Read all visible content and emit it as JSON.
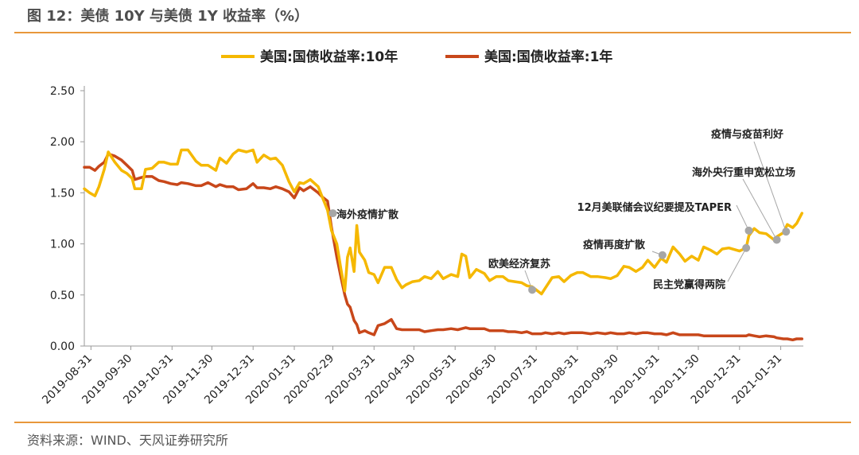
{
  "figure": {
    "title": "图 12：美债 10Y 与美债 1Y 收益率（%）",
    "source": "资料来源：WIND、天风证券研究所"
  },
  "colors": {
    "accent_rule": "#e8973b",
    "series_10y": "#f5b800",
    "series_1y": "#c8471a",
    "marker": "#a6a6a6"
  },
  "chart_data": {
    "type": "line",
    "title": "",
    "xlabel": "",
    "ylabel": "",
    "ylim": [
      0,
      2.5
    ],
    "yticks": [
      "0.00",
      "0.50",
      "1.00",
      "1.50",
      "2.00",
      "2.50"
    ],
    "xlim": [
      "2019-08-26",
      "2021-02-17"
    ],
    "xticks": [
      "2019-08-31",
      "2019-09-30",
      "2019-10-31",
      "2019-11-30",
      "2019-12-31",
      "2020-01-31",
      "2020-02-29",
      "2020-03-31",
      "2020-04-30",
      "2020-05-31",
      "2020-06-30",
      "2020-07-31",
      "2020-08-31",
      "2020-09-30",
      "2020-10-31",
      "2020-11-30",
      "2020-12-31",
      "2021-01-31"
    ],
    "grid": false,
    "legend": "top-center",
    "series": [
      {
        "name": "美国:国债收益率:10年",
        "points": [
          [
            "2019-08-26",
            1.54
          ],
          [
            "2019-08-30",
            1.5
          ],
          [
            "2019-09-03",
            1.47
          ],
          [
            "2019-09-06",
            1.56
          ],
          [
            "2019-09-10",
            1.73
          ],
          [
            "2019-09-13",
            1.9
          ],
          [
            "2019-09-18",
            1.8
          ],
          [
            "2019-09-23",
            1.72
          ],
          [
            "2019-09-27",
            1.69
          ],
          [
            "2019-10-01",
            1.64
          ],
          [
            "2019-10-03",
            1.54
          ],
          [
            "2019-10-08",
            1.54
          ],
          [
            "2019-10-11",
            1.73
          ],
          [
            "2019-10-16",
            1.74
          ],
          [
            "2019-10-21",
            1.8
          ],
          [
            "2019-10-25",
            1.8
          ],
          [
            "2019-10-30",
            1.78
          ],
          [
            "2019-11-04",
            1.78
          ],
          [
            "2019-11-07",
            1.92
          ],
          [
            "2019-11-12",
            1.92
          ],
          [
            "2019-11-18",
            1.81
          ],
          [
            "2019-11-22",
            1.77
          ],
          [
            "2019-11-27",
            1.77
          ],
          [
            "2019-12-03",
            1.72
          ],
          [
            "2019-12-06",
            1.84
          ],
          [
            "2019-12-11",
            1.79
          ],
          [
            "2019-12-16",
            1.88
          ],
          [
            "2019-12-20",
            1.92
          ],
          [
            "2019-12-26",
            1.9
          ],
          [
            "2019-12-31",
            1.92
          ],
          [
            "2020-01-03",
            1.8
          ],
          [
            "2020-01-08",
            1.87
          ],
          [
            "2020-01-13",
            1.83
          ],
          [
            "2020-01-17",
            1.84
          ],
          [
            "2020-01-22",
            1.77
          ],
          [
            "2020-01-27",
            1.61
          ],
          [
            "2020-01-31",
            1.51
          ],
          [
            "2020-02-04",
            1.6
          ],
          [
            "2020-02-07",
            1.59
          ],
          [
            "2020-02-12",
            1.63
          ],
          [
            "2020-02-18",
            1.56
          ],
          [
            "2020-02-21",
            1.46
          ],
          [
            "2020-02-25",
            1.33
          ],
          [
            "2020-02-28",
            1.13
          ],
          [
            "2020-03-03",
            1.0
          ],
          [
            "2020-03-06",
            0.76
          ],
          [
            "2020-03-09",
            0.54
          ],
          [
            "2020-03-11",
            0.87
          ],
          [
            "2020-03-13",
            0.96
          ],
          [
            "2020-03-16",
            0.73
          ],
          [
            "2020-03-18",
            1.18
          ],
          [
            "2020-03-20",
            0.92
          ],
          [
            "2020-03-24",
            0.84
          ],
          [
            "2020-03-27",
            0.72
          ],
          [
            "2020-03-31",
            0.7
          ],
          [
            "2020-04-03",
            0.62
          ],
          [
            "2020-04-08",
            0.77
          ],
          [
            "2020-04-13",
            0.77
          ],
          [
            "2020-04-17",
            0.65
          ],
          [
            "2020-04-21",
            0.57
          ],
          [
            "2020-04-24",
            0.6
          ],
          [
            "2020-04-29",
            0.63
          ],
          [
            "2020-05-04",
            0.64
          ],
          [
            "2020-05-08",
            0.68
          ],
          [
            "2020-05-13",
            0.66
          ],
          [
            "2020-05-18",
            0.73
          ],
          [
            "2020-05-22",
            0.66
          ],
          [
            "2020-05-28",
            0.7
          ],
          [
            "2020-06-02",
            0.68
          ],
          [
            "2020-06-05",
            0.9
          ],
          [
            "2020-06-08",
            0.88
          ],
          [
            "2020-06-11",
            0.67
          ],
          [
            "2020-06-16",
            0.75
          ],
          [
            "2020-06-22",
            0.71
          ],
          [
            "2020-06-26",
            0.64
          ],
          [
            "2020-07-01",
            0.68
          ],
          [
            "2020-07-06",
            0.68
          ],
          [
            "2020-07-10",
            0.64
          ],
          [
            "2020-07-15",
            0.63
          ],
          [
            "2020-07-20",
            0.62
          ],
          [
            "2020-07-24",
            0.59
          ],
          [
            "2020-07-28",
            0.58
          ],
          [
            "2020-08-04",
            0.51
          ],
          [
            "2020-08-07",
            0.57
          ],
          [
            "2020-08-12",
            0.67
          ],
          [
            "2020-08-17",
            0.68
          ],
          [
            "2020-08-21",
            0.63
          ],
          [
            "2020-08-26",
            0.69
          ],
          [
            "2020-08-31",
            0.72
          ],
          [
            "2020-09-04",
            0.72
          ],
          [
            "2020-09-10",
            0.68
          ],
          [
            "2020-09-15",
            0.68
          ],
          [
            "2020-09-21",
            0.67
          ],
          [
            "2020-09-25",
            0.66
          ],
          [
            "2020-09-30",
            0.69
          ],
          [
            "2020-10-05",
            0.78
          ],
          [
            "2020-10-09",
            0.77
          ],
          [
            "2020-10-14",
            0.73
          ],
          [
            "2020-10-19",
            0.77
          ],
          [
            "2020-10-23",
            0.84
          ],
          [
            "2020-10-28",
            0.77
          ],
          [
            "2020-11-02",
            0.86
          ],
          [
            "2020-11-06",
            0.82
          ],
          [
            "2020-11-11",
            0.97
          ],
          [
            "2020-11-16",
            0.9
          ],
          [
            "2020-11-20",
            0.83
          ],
          [
            "2020-11-25",
            0.88
          ],
          [
            "2020-11-30",
            0.84
          ],
          [
            "2020-12-04",
            0.97
          ],
          [
            "2020-12-09",
            0.94
          ],
          [
            "2020-12-14",
            0.9
          ],
          [
            "2020-12-18",
            0.95
          ],
          [
            "2020-12-23",
            0.96
          ],
          [
            "2020-12-31",
            0.93
          ],
          [
            "2021-01-05",
            0.96
          ],
          [
            "2021-01-07",
            1.08
          ],
          [
            "2021-01-11",
            1.15
          ],
          [
            "2021-01-15",
            1.11
          ],
          [
            "2021-01-20",
            1.1
          ],
          [
            "2021-01-26",
            1.04
          ],
          [
            "2021-01-28",
            1.07
          ],
          [
            "2021-02-02",
            1.11
          ],
          [
            "2021-02-05",
            1.19
          ],
          [
            "2021-02-09",
            1.16
          ],
          [
            "2021-02-12",
            1.2
          ],
          [
            "2021-02-16",
            1.3
          ]
        ]
      },
      {
        "name": "美国:国债收益率:1年",
        "points": [
          [
            "2019-08-26",
            1.75
          ],
          [
            "2019-08-30",
            1.75
          ],
          [
            "2019-09-03",
            1.72
          ],
          [
            "2019-09-06",
            1.76
          ],
          [
            "2019-09-10",
            1.8
          ],
          [
            "2019-09-13",
            1.88
          ],
          [
            "2019-09-18",
            1.86
          ],
          [
            "2019-09-23",
            1.82
          ],
          [
            "2019-09-27",
            1.77
          ],
          [
            "2019-10-01",
            1.72
          ],
          [
            "2019-10-03",
            1.63
          ],
          [
            "2019-10-08",
            1.65
          ],
          [
            "2019-10-11",
            1.66
          ],
          [
            "2019-10-16",
            1.66
          ],
          [
            "2019-10-21",
            1.62
          ],
          [
            "2019-10-25",
            1.61
          ],
          [
            "2019-10-30",
            1.59
          ],
          [
            "2019-11-04",
            1.58
          ],
          [
            "2019-11-07",
            1.6
          ],
          [
            "2019-11-12",
            1.59
          ],
          [
            "2019-11-18",
            1.57
          ],
          [
            "2019-11-22",
            1.57
          ],
          [
            "2019-11-27",
            1.6
          ],
          [
            "2019-12-03",
            1.56
          ],
          [
            "2019-12-06",
            1.58
          ],
          [
            "2019-12-11",
            1.56
          ],
          [
            "2019-12-16",
            1.56
          ],
          [
            "2019-12-20",
            1.53
          ],
          [
            "2019-12-26",
            1.54
          ],
          [
            "2019-12-31",
            1.59
          ],
          [
            "2020-01-03",
            1.55
          ],
          [
            "2020-01-08",
            1.55
          ],
          [
            "2020-01-13",
            1.54
          ],
          [
            "2020-01-17",
            1.56
          ],
          [
            "2020-01-22",
            1.54
          ],
          [
            "2020-01-27",
            1.51
          ],
          [
            "2020-01-31",
            1.45
          ],
          [
            "2020-02-04",
            1.55
          ],
          [
            "2020-02-07",
            1.52
          ],
          [
            "2020-02-12",
            1.56
          ],
          [
            "2020-02-18",
            1.5
          ],
          [
            "2020-02-21",
            1.46
          ],
          [
            "2020-02-25",
            1.42
          ],
          [
            "2020-02-28",
            1.16
          ],
          [
            "2020-03-03",
            0.87
          ],
          [
            "2020-03-06",
            0.68
          ],
          [
            "2020-03-09",
            0.5
          ],
          [
            "2020-03-11",
            0.41
          ],
          [
            "2020-03-13",
            0.38
          ],
          [
            "2020-03-16",
            0.25
          ],
          [
            "2020-03-18",
            0.21
          ],
          [
            "2020-03-20",
            0.13
          ],
          [
            "2020-03-24",
            0.15
          ],
          [
            "2020-03-27",
            0.13
          ],
          [
            "2020-03-31",
            0.11
          ],
          [
            "2020-04-03",
            0.2
          ],
          [
            "2020-04-08",
            0.22
          ],
          [
            "2020-04-13",
            0.26
          ],
          [
            "2020-04-17",
            0.17
          ],
          [
            "2020-04-21",
            0.16
          ],
          [
            "2020-04-24",
            0.16
          ],
          [
            "2020-04-29",
            0.16
          ],
          [
            "2020-05-04",
            0.16
          ],
          [
            "2020-05-08",
            0.14
          ],
          [
            "2020-05-13",
            0.15
          ],
          [
            "2020-05-18",
            0.16
          ],
          [
            "2020-05-22",
            0.16
          ],
          [
            "2020-05-28",
            0.17
          ],
          [
            "2020-06-02",
            0.16
          ],
          [
            "2020-06-05",
            0.17
          ],
          [
            "2020-06-08",
            0.18
          ],
          [
            "2020-06-11",
            0.17
          ],
          [
            "2020-06-16",
            0.17
          ],
          [
            "2020-06-22",
            0.17
          ],
          [
            "2020-06-26",
            0.15
          ],
          [
            "2020-07-01",
            0.15
          ],
          [
            "2020-07-06",
            0.15
          ],
          [
            "2020-07-10",
            0.14
          ],
          [
            "2020-07-15",
            0.14
          ],
          [
            "2020-07-20",
            0.13
          ],
          [
            "2020-07-24",
            0.14
          ],
          [
            "2020-07-28",
            0.12
          ],
          [
            "2020-08-04",
            0.12
          ],
          [
            "2020-08-07",
            0.13
          ],
          [
            "2020-08-12",
            0.12
          ],
          [
            "2020-08-17",
            0.13
          ],
          [
            "2020-08-21",
            0.12
          ],
          [
            "2020-08-26",
            0.13
          ],
          [
            "2020-08-31",
            0.13
          ],
          [
            "2020-09-04",
            0.13
          ],
          [
            "2020-09-10",
            0.12
          ],
          [
            "2020-09-15",
            0.13
          ],
          [
            "2020-09-21",
            0.12
          ],
          [
            "2020-09-25",
            0.13
          ],
          [
            "2020-09-30",
            0.12
          ],
          [
            "2020-10-05",
            0.12
          ],
          [
            "2020-10-09",
            0.13
          ],
          [
            "2020-10-14",
            0.12
          ],
          [
            "2020-10-19",
            0.13
          ],
          [
            "2020-10-23",
            0.13
          ],
          [
            "2020-10-28",
            0.12
          ],
          [
            "2020-11-02",
            0.12
          ],
          [
            "2020-11-06",
            0.11
          ],
          [
            "2020-11-11",
            0.13
          ],
          [
            "2020-11-16",
            0.11
          ],
          [
            "2020-11-20",
            0.11
          ],
          [
            "2020-11-25",
            0.11
          ],
          [
            "2020-11-30",
            0.11
          ],
          [
            "2020-12-04",
            0.1
          ],
          [
            "2020-12-09",
            0.1
          ],
          [
            "2020-12-14",
            0.1
          ],
          [
            "2020-12-18",
            0.1
          ],
          [
            "2020-12-23",
            0.1
          ],
          [
            "2020-12-31",
            0.1
          ],
          [
            "2021-01-05",
            0.1
          ],
          [
            "2021-01-07",
            0.11
          ],
          [
            "2021-01-11",
            0.1
          ],
          [
            "2021-01-15",
            0.09
          ],
          [
            "2021-01-20",
            0.1
          ],
          [
            "2021-01-26",
            0.09
          ],
          [
            "2021-01-28",
            0.08
          ],
          [
            "2021-02-02",
            0.07
          ],
          [
            "2021-02-05",
            0.07
          ],
          [
            "2021-02-09",
            0.06
          ],
          [
            "2021-02-12",
            0.07
          ],
          [
            "2021-02-16",
            0.07
          ]
        ]
      }
    ],
    "annotations": [
      {
        "label": "海外疫情扩散",
        "date": "2020-02-29",
        "value": 1.3
      },
      {
        "label": "欧美经济复苏",
        "date": "2020-07-28",
        "value": 0.55
      },
      {
        "label": "疫情再度扩散",
        "date": "2020-11-03",
        "value": 0.89
      },
      {
        "label": "民主党赢得两院",
        "date": "2021-01-05",
        "value": 0.96
      },
      {
        "label": "12月美联储会议纪要提及TAPER",
        "date": "2021-01-07",
        "value": 1.13
      },
      {
        "label": "疫情与疫苗利好",
        "date": "2021-02-04",
        "value": 1.12
      },
      {
        "label": "海外央行重申宽松立场",
        "date": "2021-01-28",
        "value": 1.04
      }
    ]
  }
}
